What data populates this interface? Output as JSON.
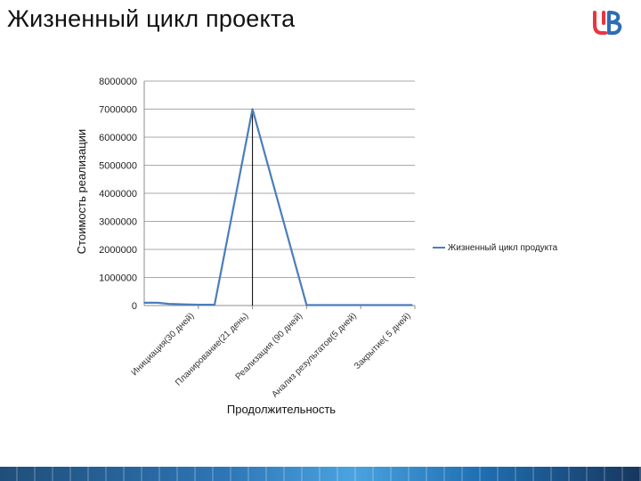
{
  "slide": {
    "title": "Жизненный цикл проекта"
  },
  "logo": {
    "icon": "ub-logo-icon",
    "color": "#e8353f"
  },
  "chart_data": {
    "type": "line",
    "title": "",
    "xlabel": "Продолжительность",
    "ylabel": "Стоимость реализации",
    "ylim": [
      0,
      8000000
    ],
    "yticks": [
      "0",
      "1000000",
      "2000000",
      "3000000",
      "4000000",
      "5000000",
      "6000000",
      "7000000",
      "8000000"
    ],
    "grid": true,
    "legend_position": "right",
    "categories": [
      "Инициация(30 дней)",
      "Планирование(21 день)",
      "Реализация (90 дней)",
      "Анализ результатов(5 дней)",
      "Закрытие( 5 дней)"
    ],
    "series": [
      {
        "name": "Жизненный цикл продукта",
        "color": "#4a7ebb",
        "x": [
          0.0,
          0.25,
          0.45,
          0.75,
          1.0,
          1.3,
          2.0,
          3.0,
          4.0,
          4.95
        ],
        "y": [
          100000,
          100000,
          60000,
          40000,
          30000,
          30000,
          7000000,
          15000,
          15000,
          15000
        ]
      }
    ],
    "annotations": [
      {
        "type": "vertical-line",
        "x": 2.0,
        "color": "#000000"
      }
    ]
  }
}
